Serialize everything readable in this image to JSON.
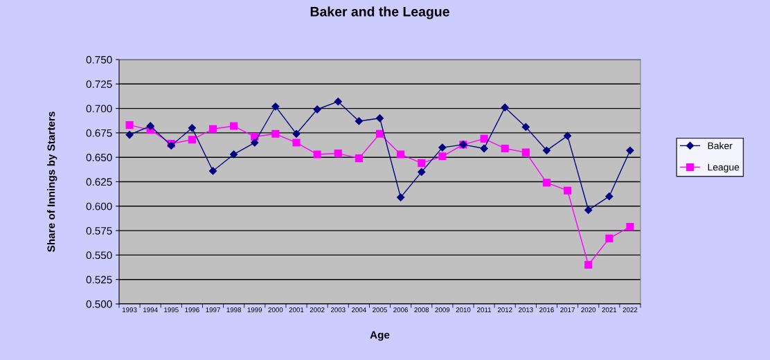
{
  "chart_data": {
    "type": "line",
    "title": "Baker and the League",
    "xlabel": "Age",
    "ylabel": "Share of Innings by Starters",
    "categories": [
      "1993",
      "1994",
      "1995",
      "1996",
      "1997",
      "1998",
      "1999",
      "2000",
      "2001",
      "2002",
      "2003",
      "2004",
      "2005",
      "2006",
      "2008",
      "2009",
      "2010",
      "2011",
      "2012",
      "2013",
      "2016",
      "2017",
      "2020",
      "2021",
      "2022"
    ],
    "series": [
      {
        "name": "Baker",
        "color": "#000080",
        "marker": "diamond",
        "values": [
          0.673,
          0.682,
          0.662,
          0.68,
          0.636,
          0.653,
          0.665,
          0.702,
          0.674,
          0.699,
          0.707,
          0.687,
          0.69,
          0.609,
          0.635,
          0.66,
          0.663,
          0.659,
          0.701,
          0.681,
          0.657,
          0.672,
          0.596,
          0.61,
          0.657
        ]
      },
      {
        "name": "League",
        "color": "#ff00ff",
        "marker": "square",
        "values": [
          0.683,
          0.678,
          0.664,
          0.668,
          0.679,
          0.682,
          0.671,
          0.674,
          0.665,
          0.653,
          0.654,
          0.649,
          0.674,
          0.653,
          0.644,
          0.651,
          0.663,
          0.669,
          0.659,
          0.655,
          0.624,
          0.616,
          0.54,
          0.567,
          0.579
        ]
      }
    ],
    "ylim": [
      0.5,
      0.75
    ],
    "yticks": [
      {
        "value": 0.5,
        "label": "0.500"
      },
      {
        "value": 0.525,
        "label": "0.525"
      },
      {
        "value": 0.55,
        "label": "0.550"
      },
      {
        "value": 0.575,
        "label": "0.575"
      },
      {
        "value": 0.6,
        "label": "0.600"
      },
      {
        "value": 0.625,
        "label": "0.625"
      },
      {
        "value": 0.65,
        "label": "0.650"
      },
      {
        "value": 0.675,
        "label": "0.675"
      },
      {
        "value": 0.7,
        "label": "0.700"
      },
      {
        "value": 0.725,
        "label": "0.725"
      },
      {
        "value": 0.75,
        "label": "0.750"
      }
    ],
    "grid": "y",
    "legend": "right",
    "line_style": "solid"
  }
}
